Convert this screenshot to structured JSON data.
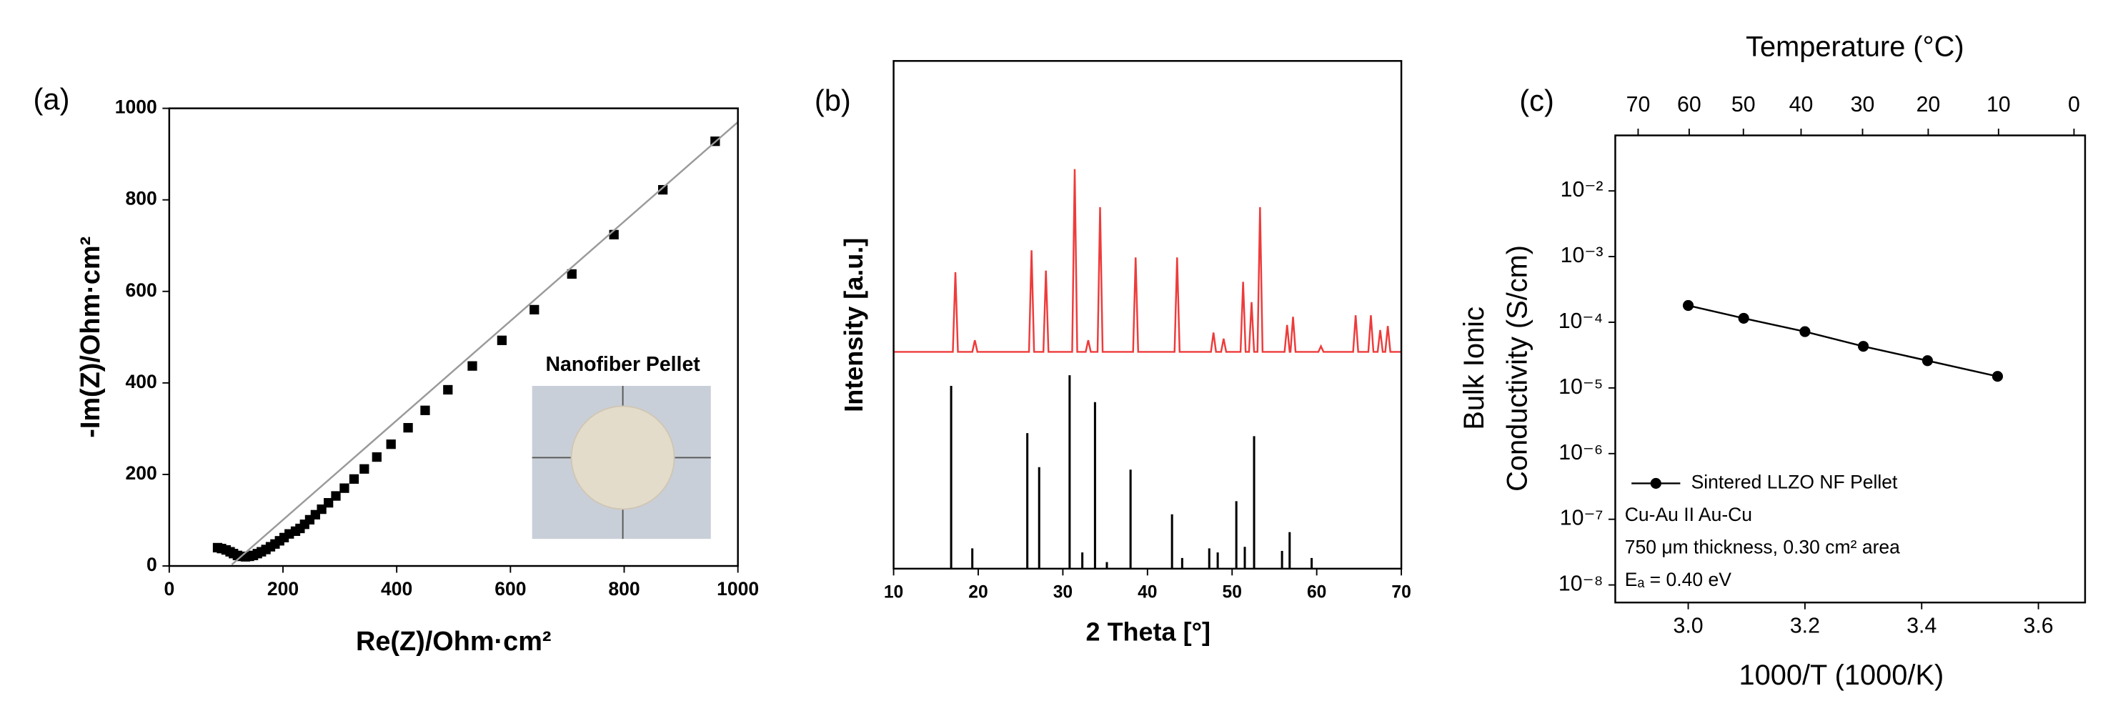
{
  "chart_data": [
    {
      "type": "scatter",
      "panel_label": "(a)",
      "xlabel": "Re(Z)/Ohm·cm²",
      "ylabel": "-Im(Z)/Ohm·cm²",
      "xlim": [
        0,
        1000
      ],
      "ylim": [
        0,
        1000
      ],
      "xticks": [
        0,
        200,
        400,
        600,
        800,
        1000
      ],
      "yticks": [
        0,
        200,
        400,
        600,
        800,
        1000
      ],
      "annotations": [
        {
          "text": "Nanofiber Pellet",
          "color": "#000000"
        }
      ],
      "series": [
        {
          "style": "markers",
          "color": "#000000",
          "x": [
            85,
            92,
            100,
            107,
            113,
            120,
            127,
            134,
            141,
            148,
            155,
            162,
            170,
            178,
            186,
            194,
            202,
            211,
            222,
            230,
            238,
            247,
            257,
            268,
            280,
            293,
            308,
            325,
            343,
            365,
            390,
            420,
            450,
            490,
            533,
            585,
            642,
            708,
            782,
            868,
            960
          ],
          "values": [
            40,
            38,
            35,
            31,
            27,
            23,
            21,
            20,
            21,
            23,
            27,
            31,
            36,
            42,
            48,
            55,
            62,
            70,
            76,
            82,
            91,
            101,
            112,
            124,
            138,
            153,
            170,
            190,
            212,
            238,
            266,
            302,
            340,
            385,
            437,
            493,
            560,
            638,
            724,
            822,
            928
          ]
        },
        {
          "style": "line",
          "color": "#9a9a9a",
          "x": [
            110,
            1000
          ],
          "values": [
            3,
            970
          ]
        }
      ]
    },
    {
      "type": "line",
      "panel_label": "(b)",
      "xlabel": "2 Theta [°]",
      "ylabel": "Intensity [a.u.]",
      "xlim": [
        10,
        70
      ],
      "ylim": [
        0,
        100
      ],
      "xticks": [
        10,
        20,
        30,
        40,
        50,
        60,
        70
      ],
      "series": [
        {
          "style": "line",
          "color": "#ee3b3b",
          "x": [
            10,
            17.0,
            17.3,
            17.6,
            19.3,
            19.6,
            19.9,
            26.0,
            26.3,
            26.6,
            27.7,
            28.0,
            28.3,
            31.1,
            31.4,
            31.7,
            32.7,
            33.0,
            33.3,
            34.1,
            34.4,
            34.7,
            38.3,
            38.6,
            38.9,
            43.2,
            43.5,
            43.8,
            47.5,
            47.8,
            48.1,
            48.7,
            49.0,
            49.3,
            51.0,
            51.3,
            51.6,
            52.0,
            52.3,
            52.6,
            53.0,
            53.3,
            53.6,
            56.2,
            56.5,
            56.8,
            56.9,
            57.2,
            57.5,
            60.2,
            60.5,
            60.8,
            64.3,
            64.6,
            64.9,
            66.1,
            66.4,
            66.7,
            67.2,
            67.5,
            67.8,
            68.1,
            68.4,
            68.7,
            70
          ],
          "values": [
            42.7,
            42.7,
            58.4,
            42.7,
            42.7,
            45,
            42.7,
            42.7,
            62.7,
            42.7,
            42.7,
            58.7,
            42.7,
            42.7,
            78.7,
            42.7,
            42.7,
            45,
            42.7,
            42.7,
            71.2,
            42.7,
            42.7,
            61.3,
            42.7,
            42.7,
            61.3,
            42.7,
            42.7,
            46.5,
            42.7,
            42.7,
            45.3,
            42.7,
            42.7,
            56.5,
            42.7,
            42.7,
            52.5,
            42.7,
            42.7,
            71.2,
            42.7,
            42.7,
            48,
            42.7,
            42.7,
            49.6,
            42.7,
            42.7,
            43.8,
            42.7,
            42.7,
            49.9,
            42.7,
            42.7,
            49.9,
            42.7,
            42.7,
            47,
            42.7,
            42.7,
            47.8,
            42.7,
            42.7
          ]
        },
        {
          "style": "stick",
          "color": "#000000",
          "x": [
            16.8,
            19.3,
            25.8,
            27.2,
            30.8,
            32.3,
            33.8,
            35.2,
            38.0,
            42.9,
            44.1,
            47.3,
            48.3,
            50.5,
            51.5,
            52.6,
            55.9,
            56.8,
            59.4
          ],
          "values": [
            36,
            4,
            26.7,
            20,
            38.1,
            3.2,
            32.8,
            1.3,
            19.5,
            10.7,
            2.1,
            4,
            3.2,
            13.3,
            4.3,
            26.1,
            3.5,
            7.2,
            2.1
          ]
        }
      ]
    },
    {
      "type": "line",
      "panel_label": "(c)",
      "xlabel": "1000/T (1000/K)",
      "ylabel": [
        "Bulk Ionic",
        "Conductivity (S/cm)"
      ],
      "x2label": "Temperature (°C)",
      "yscale": "log",
      "xlim": [
        2.875,
        3.68
      ],
      "ylim": [
        5.4e-09,
        0.07
      ],
      "xticks": [
        {
          "value": 3,
          "label": "3.0"
        },
        3.2,
        3.4,
        3.6
      ],
      "x2ticks": [
        70,
        60,
        50,
        40,
        30,
        20,
        10,
        0
      ],
      "yticks": [
        {
          "value": 1e-08,
          "label": "10⁻⁸"
        },
        {
          "value": 1e-07,
          "label": "10⁻⁷"
        },
        {
          "value": 1e-06,
          "label": "10⁻⁶"
        },
        {
          "value": 1e-05,
          "label": "10⁻⁵"
        },
        {
          "value": 0.0001,
          "label": "10⁻⁴"
        },
        {
          "value": 0.001,
          "label": "10⁻³"
        },
        {
          "value": 0.01,
          "label": "10⁻²"
        }
      ],
      "annotations": [
        {
          "text": "Cu-Au II Au-Cu",
          "color": "#000000"
        },
        {
          "text": "750 μm thickness, 0.30 cm² area",
          "color": "#000000"
        },
        {
          "text": "Eₐ = 0.40 eV",
          "color": "#2a3cff"
        }
      ],
      "series": [
        {
          "name": "Sintered LLZO NF Pellet",
          "style": "line-markers",
          "color": "#000000",
          "x": [
            3.0,
            3.095,
            3.2,
            3.3,
            3.41,
            3.53
          ],
          "values": [
            0.00018,
            0.000115,
            7.2e-05,
            4.3e-05,
            2.6e-05,
            1.5e-05
          ]
        }
      ]
    }
  ]
}
